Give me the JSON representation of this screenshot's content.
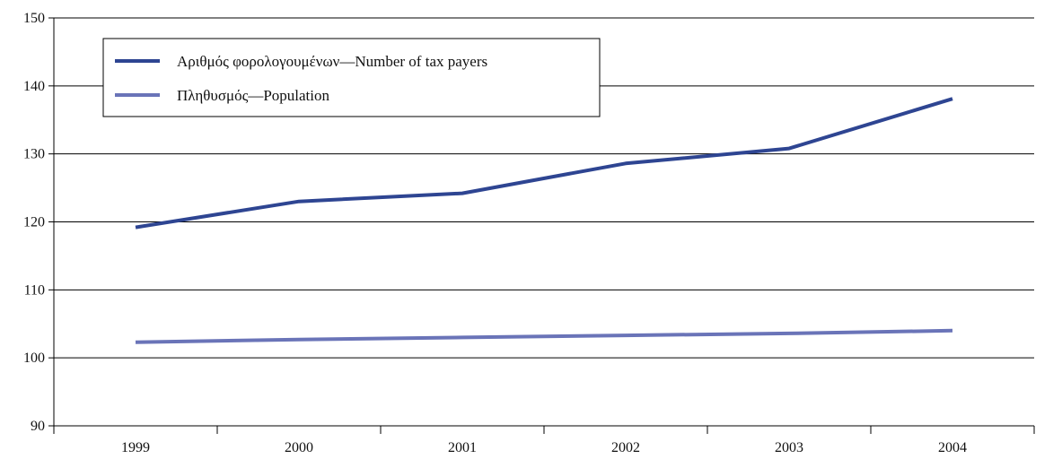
{
  "chart_data": {
    "type": "line",
    "title": "",
    "xlabel": "",
    "ylabel": "",
    "categories": [
      "1999",
      "2000",
      "2001",
      "2002",
      "2003",
      "2004"
    ],
    "ylim": [
      90,
      150
    ],
    "yticks": [
      90,
      100,
      110,
      120,
      130,
      140,
      150
    ],
    "grid": "horizontal",
    "legend_position": "top-left",
    "series": [
      {
        "name": "Αριθμός φορολογουμένων—Number of tax payers",
        "color": "#2e4592",
        "values": [
          119.2,
          123.0,
          124.2,
          128.6,
          130.8,
          138.1
        ]
      },
      {
        "name": "Πληθυσμός—Population",
        "color": "#6a74b8",
        "values": [
          102.3,
          102.7,
          103.0,
          103.3,
          103.6,
          104.0
        ]
      }
    ]
  }
}
